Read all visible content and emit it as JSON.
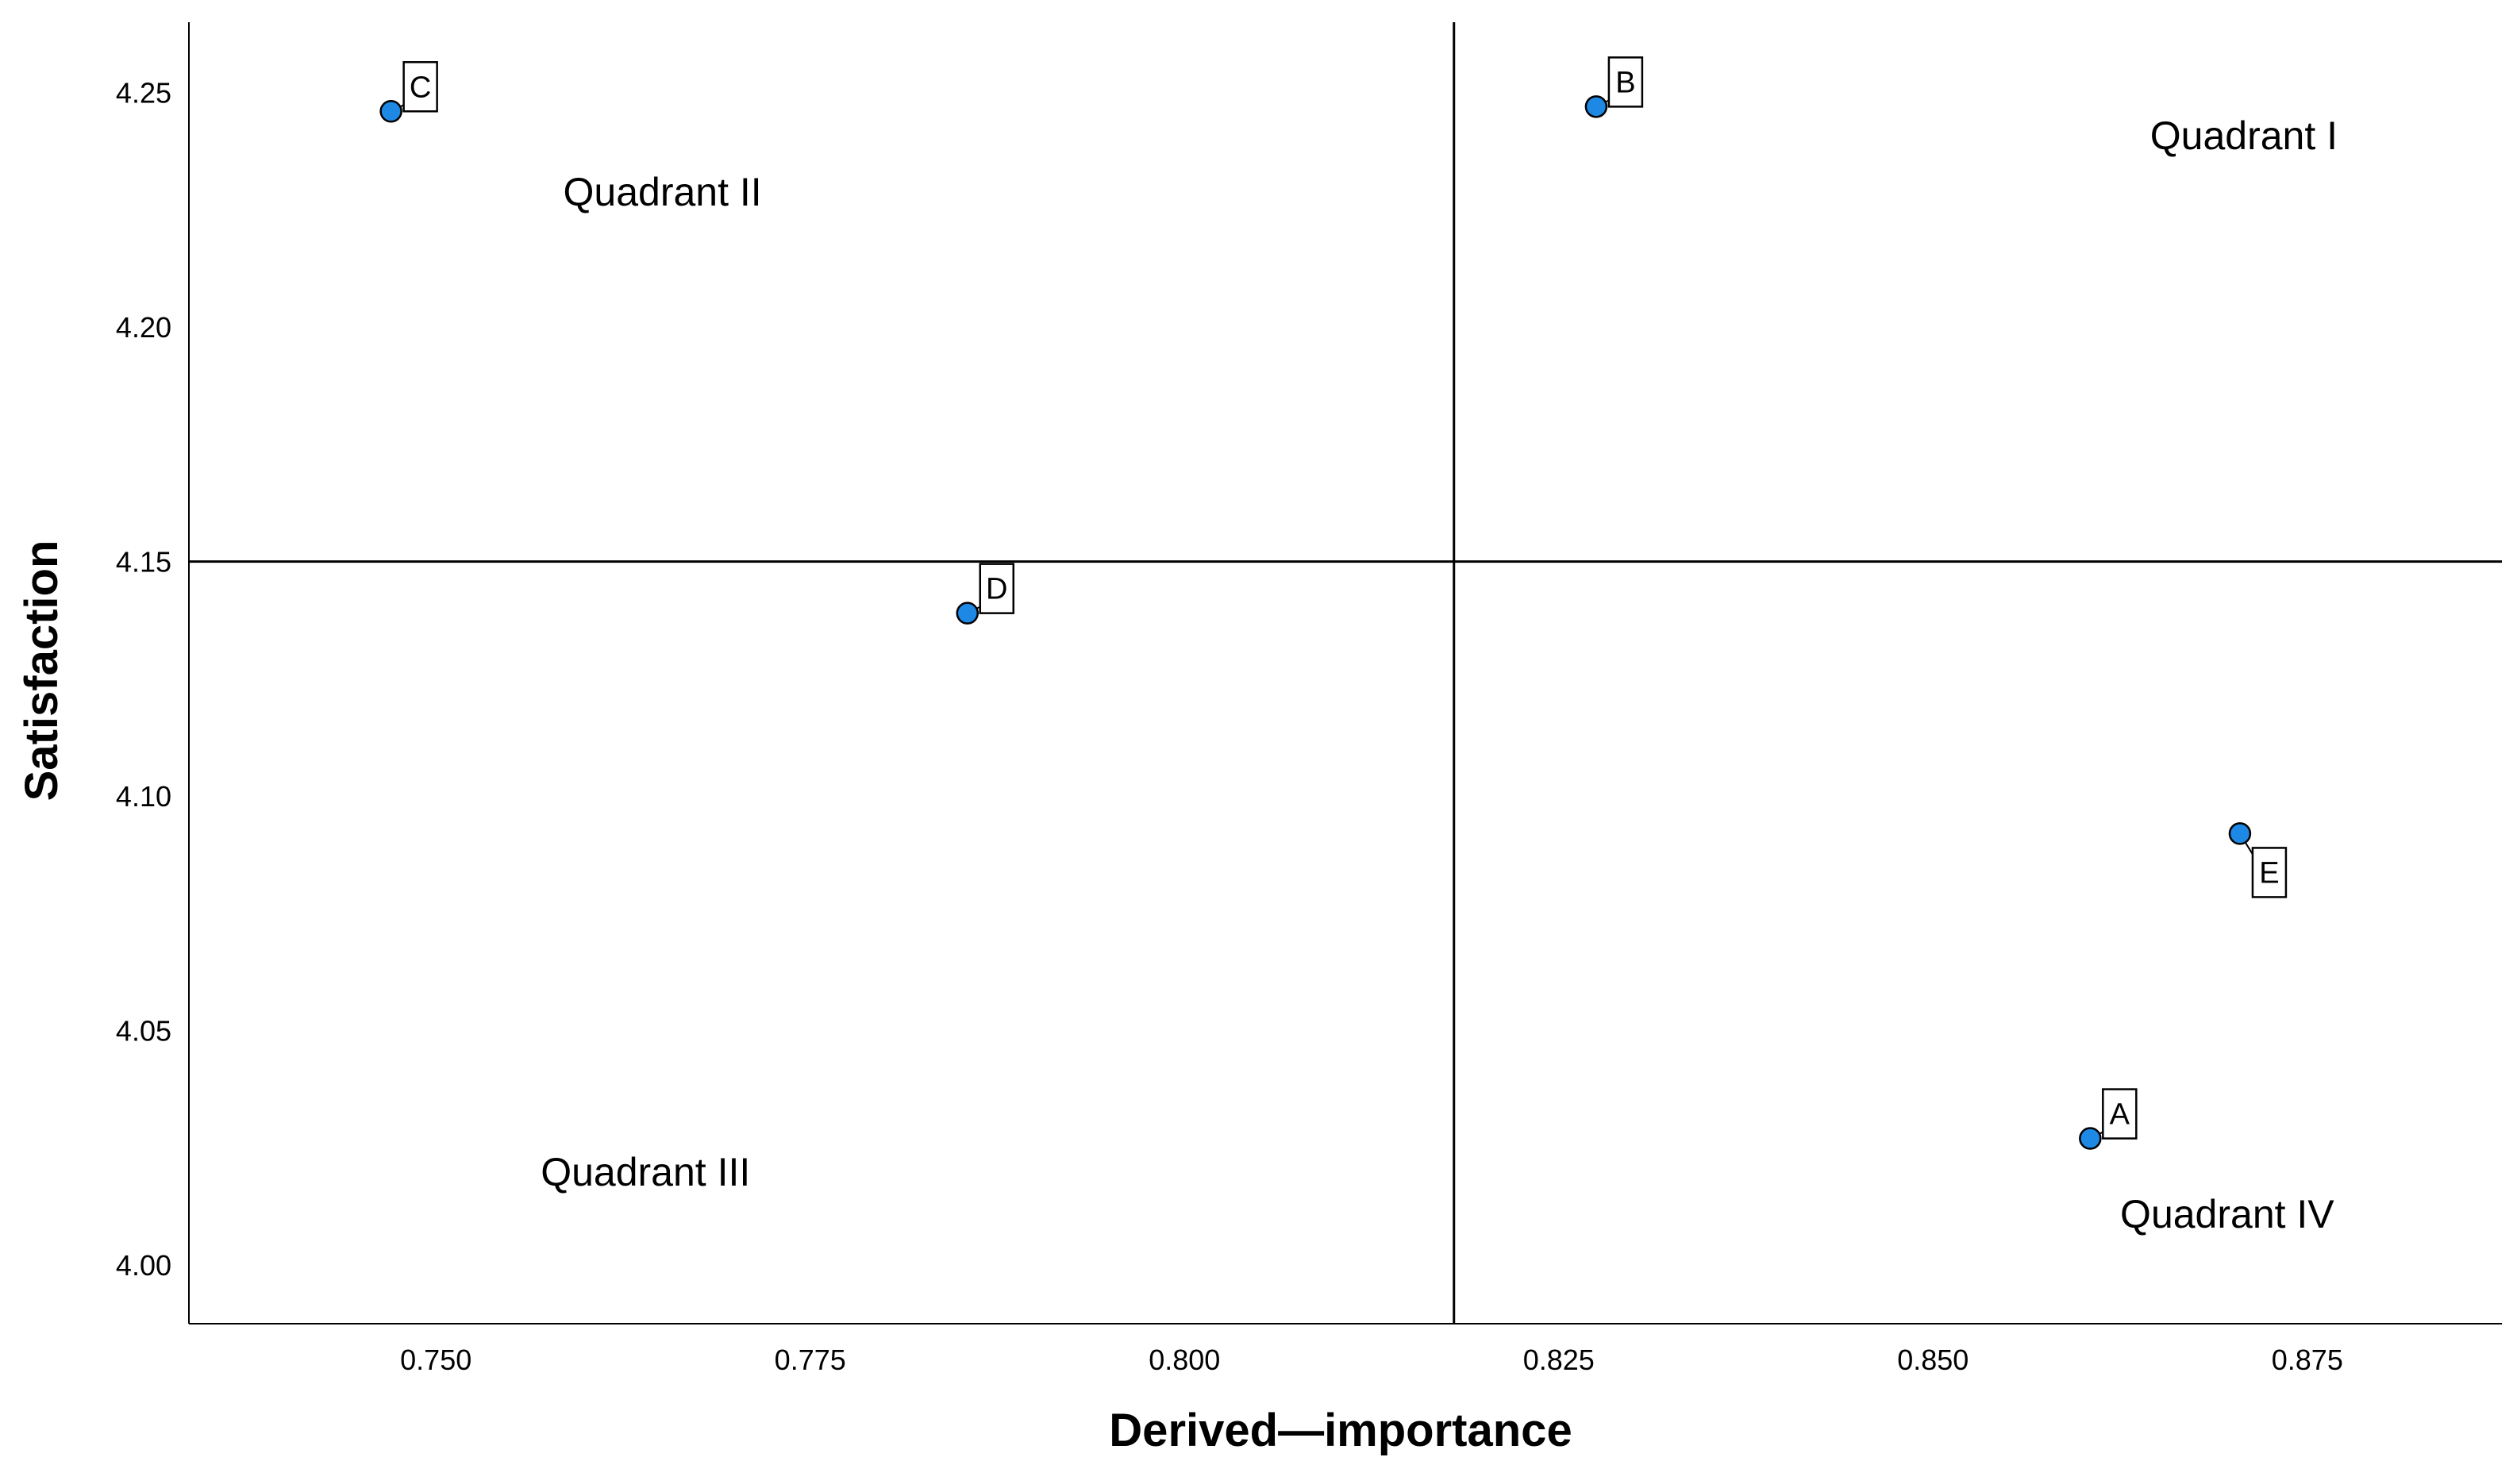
{
  "chart_data": {
    "type": "scatter",
    "title": "",
    "xlabel": "Derived—importance",
    "ylabel": "Satisfaction",
    "xlim": [
      0.7335,
      0.888
    ],
    "ylim": [
      3.9875,
      4.265
    ],
    "x_ticks": [
      0.75,
      0.775,
      0.8,
      0.825,
      0.85,
      0.875
    ],
    "x_tick_labels": [
      "0.750",
      "0.775",
      "0.800",
      "0.825",
      "0.850",
      "0.875"
    ],
    "y_ticks": [
      4.0,
      4.05,
      4.1,
      4.15,
      4.2,
      4.25
    ],
    "y_tick_labels": [
      "4.00",
      "4.05",
      "4.10",
      "4.15",
      "4.20",
      "4.25"
    ],
    "grid": false,
    "reference_lines": {
      "x": 0.818,
      "y": 4.15
    },
    "points": [
      {
        "label": "A",
        "x": 0.8605,
        "y": 4.027
      },
      {
        "label": "B",
        "x": 0.8275,
        "y": 4.247
      },
      {
        "label": "C",
        "x": 0.747,
        "y": 4.246
      },
      {
        "label": "D",
        "x": 0.7855,
        "y": 4.139
      },
      {
        "label": "E",
        "x": 0.8705,
        "y": 4.092
      }
    ],
    "quadrant_labels": [
      {
        "text": "Quadrant I",
        "x": 0.8645,
        "y": 4.241
      },
      {
        "text": "Quadrant II",
        "x": 0.7585,
        "y": 4.229
      },
      {
        "text": "Quadrant III",
        "x": 0.757,
        "y": 4.02
      },
      {
        "text": "Quadrant IV",
        "x": 0.8625,
        "y": 4.011
      }
    ],
    "point_color": "#1E88E5"
  }
}
